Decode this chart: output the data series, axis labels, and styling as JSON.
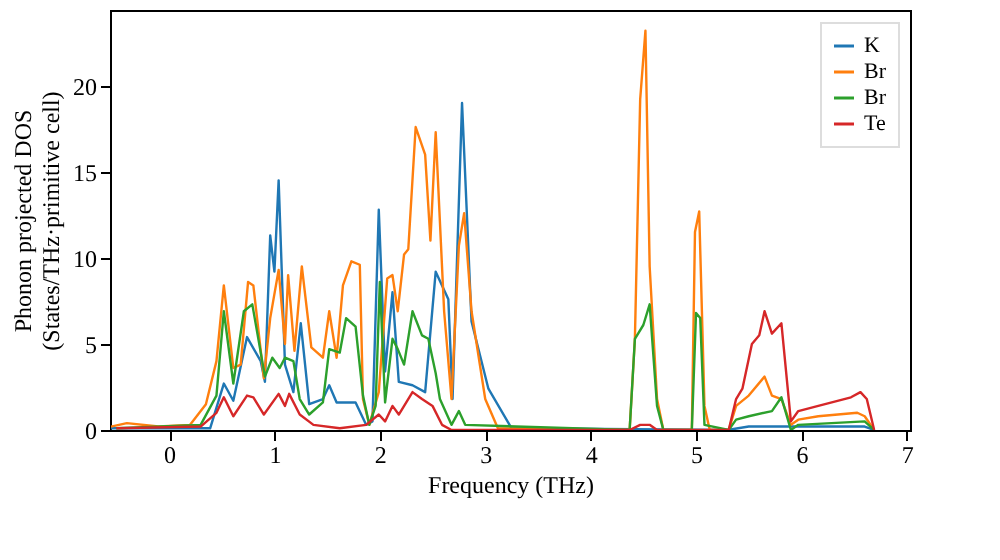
{
  "chart_data": {
    "type": "line",
    "xlabel": "Frequency (THz)",
    "ylabel": "Phonon projected DOS\n(States/THz·primitive cell)",
    "xlim": [
      -0.56,
      7.03
    ],
    "ylim": [
      0,
      24.4
    ],
    "xticks": [
      0,
      1,
      2,
      3,
      4,
      5,
      6,
      7
    ],
    "yticks": [
      0,
      5,
      10,
      15,
      20
    ],
    "grid": false,
    "legend": "top right",
    "marker": "none",
    "line_style": "solid",
    "series": [
      {
        "name": "K",
        "color": "#1f77b4",
        "x": [
          -0.55,
          0.39,
          0.52,
          0.61,
          0.74,
          0.87,
          0.91,
          0.96,
          1.0,
          1.04,
          1.1,
          1.18,
          1.25,
          1.33,
          1.46,
          1.52,
          1.59,
          1.77,
          1.87,
          1.93,
          1.99,
          2.05,
          2.12,
          2.18,
          2.31,
          2.43,
          2.53,
          2.65,
          2.69,
          2.78,
          2.87,
          3.03,
          3.25,
          5.3,
          5.5,
          6.6,
          6.69
        ],
        "values": [
          0.1,
          0.1,
          2.7,
          1.7,
          5.4,
          4.0,
          2.8,
          11.3,
          9.2,
          14.5,
          3.8,
          2.2,
          6.2,
          1.5,
          1.8,
          2.6,
          1.6,
          1.6,
          0.3,
          0.5,
          12.8,
          3.4,
          8.0,
          2.8,
          2.6,
          2.2,
          9.2,
          7.6,
          1.8,
          19.0,
          6.3,
          2.4,
          0.1,
          0,
          0.2,
          0.2,
          0
        ]
      },
      {
        "name": "Br",
        "color": "#ff7f0e",
        "x": [
          -0.55,
          -0.4,
          -0.1,
          0.2,
          0.35,
          0.45,
          0.52,
          0.61,
          0.68,
          0.75,
          0.8,
          0.9,
          0.96,
          1.04,
          1.1,
          1.13,
          1.19,
          1.26,
          1.35,
          1.46,
          1.52,
          1.59,
          1.65,
          1.73,
          1.81,
          1.84,
          1.9,
          1.99,
          2.07,
          2.12,
          2.17,
          2.23,
          2.27,
          2.34,
          2.43,
          2.48,
          2.53,
          2.61,
          2.68,
          2.75,
          2.8,
          2.87,
          3.0,
          3.12,
          4.37,
          4.42,
          4.47,
          4.52,
          4.56,
          4.63,
          4.69,
          4.96,
          4.99,
          5.03,
          5.08,
          5.13,
          5.31,
          5.38,
          5.5,
          5.65,
          5.72,
          5.81,
          5.9,
          5.97,
          6.16,
          6.53,
          6.6,
          6.69
        ],
        "values": [
          0.2,
          0.4,
          0.2,
          0.3,
          1.5,
          4.0,
          8.4,
          3.6,
          3.8,
          8.6,
          8.4,
          3.0,
          6.5,
          9.3,
          5.0,
          9.0,
          4.6,
          9.5,
          4.8,
          4.2,
          6.9,
          4.2,
          8.4,
          9.8,
          9.6,
          1.8,
          0.3,
          2.2,
          8.8,
          9.0,
          6.9,
          10.2,
          10.5,
          17.6,
          16.0,
          11.0,
          17.3,
          6.9,
          1.8,
          10.7,
          12.6,
          6.9,
          1.8,
          0.1,
          0,
          5.3,
          19.2,
          23.2,
          9.5,
          1.8,
          0,
          0,
          11.5,
          12.7,
          1.4,
          0,
          0,
          1.4,
          2.0,
          3.1,
          2.0,
          1.8,
          0.3,
          0.6,
          0.8,
          1.0,
          0.8,
          0
        ]
      },
      {
        "name": "Br",
        "color": "#2ca02c",
        "x": [
          -0.5,
          0.3,
          0.45,
          0.52,
          0.61,
          0.71,
          0.79,
          0.91,
          0.98,
          1.05,
          1.1,
          1.18,
          1.24,
          1.33,
          1.46,
          1.52,
          1.62,
          1.68,
          1.77,
          1.84,
          1.9,
          1.96,
          2.0,
          2.05,
          2.12,
          2.17,
          2.23,
          2.31,
          2.4,
          2.46,
          2.53,
          2.57,
          2.68,
          2.75,
          2.81,
          4.37,
          4.42,
          4.5,
          4.56,
          4.63,
          4.69,
          4.96,
          5.0,
          5.04,
          5.08,
          5.31,
          5.38,
          5.5,
          5.72,
          5.81,
          5.9,
          5.97,
          6.6,
          6.69
        ],
        "values": [
          0.1,
          0.3,
          2.0,
          6.9,
          2.7,
          6.9,
          7.3,
          3.1,
          4.2,
          3.6,
          4.2,
          4.0,
          1.8,
          0.9,
          1.6,
          4.7,
          4.5,
          6.5,
          6.0,
          2.0,
          0.3,
          1.4,
          8.6,
          1.6,
          5.3,
          4.7,
          3.8,
          6.9,
          5.5,
          5.3,
          3.3,
          1.8,
          0.3,
          1.1,
          0.3,
          0,
          5.3,
          6.1,
          7.3,
          1.4,
          0,
          0,
          6.8,
          6.5,
          0.3,
          0,
          0.6,
          0.8,
          1.1,
          1.9,
          0,
          0.3,
          0.5,
          0
        ]
      },
      {
        "name": "Te",
        "color": "#d62728",
        "x": [
          -0.5,
          0.3,
          0.45,
          0.52,
          0.61,
          0.74,
          0.8,
          0.9,
          1.04,
          1.1,
          1.14,
          1.24,
          1.37,
          1.62,
          1.87,
          1.99,
          2.05,
          2.12,
          2.18,
          2.31,
          2.4,
          2.5,
          2.59,
          2.68,
          4.37,
          4.47,
          4.56,
          4.63,
          5.31,
          5.38,
          5.44,
          5.53,
          5.6,
          5.65,
          5.72,
          5.81,
          5.9,
          5.97,
          6.16,
          6.47,
          6.56,
          6.62,
          6.69
        ],
        "values": [
          0.1,
          0.2,
          1.0,
          1.9,
          0.8,
          2.0,
          1.9,
          0.9,
          2.1,
          1.4,
          2.1,
          0.9,
          0.3,
          0.1,
          0.3,
          0.9,
          0.5,
          1.4,
          0.9,
          2.2,
          1.8,
          1.4,
          0.3,
          0,
          0,
          0.3,
          0.3,
          0,
          0,
          1.8,
          2.4,
          5.0,
          5.5,
          6.9,
          5.6,
          6.2,
          0.5,
          1.1,
          1.4,
          1.9,
          2.2,
          1.8,
          0
        ]
      }
    ]
  }
}
